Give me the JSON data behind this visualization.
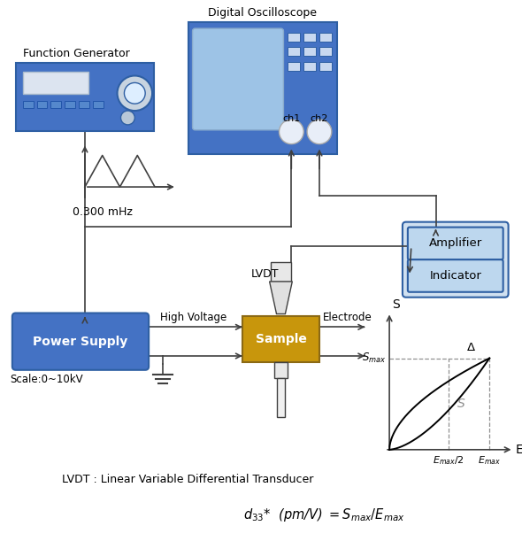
{
  "bg_color": "#ffffff",
  "blue": "#4472C4",
  "blue_border": "#2E5FA3",
  "screen_teal": "#9DC3E6",
  "gold": "#C8960C",
  "gold_dark": "#8B6914",
  "amp_bg": "#BDD7EE",
  "amp_border": "#2E5FA3",
  "lc": "#404040",
  "gc": "#909090",
  "func_gen": "Function Generator",
  "osc": "Digital Oscilloscope",
  "power": "Power Supply",
  "sample": "Sample",
  "amplifier": "Amplifier",
  "indicator": "Indicator",
  "high_voltage": "High Voltage",
  "electrode": "Electrode",
  "lvdt": "LVDT",
  "scale": "Scale:0~10kV",
  "freq": "0.300 mHz",
  "ch1": "ch1",
  "ch2": "ch2",
  "footer": "LVDT : Linear Variable Differential Transducer",
  "formula": "$d_{33}$*  (pm/V) $= S_{max}/E_{max}$",
  "figw": 5.9,
  "figh": 6.2,
  "dpi": 100
}
